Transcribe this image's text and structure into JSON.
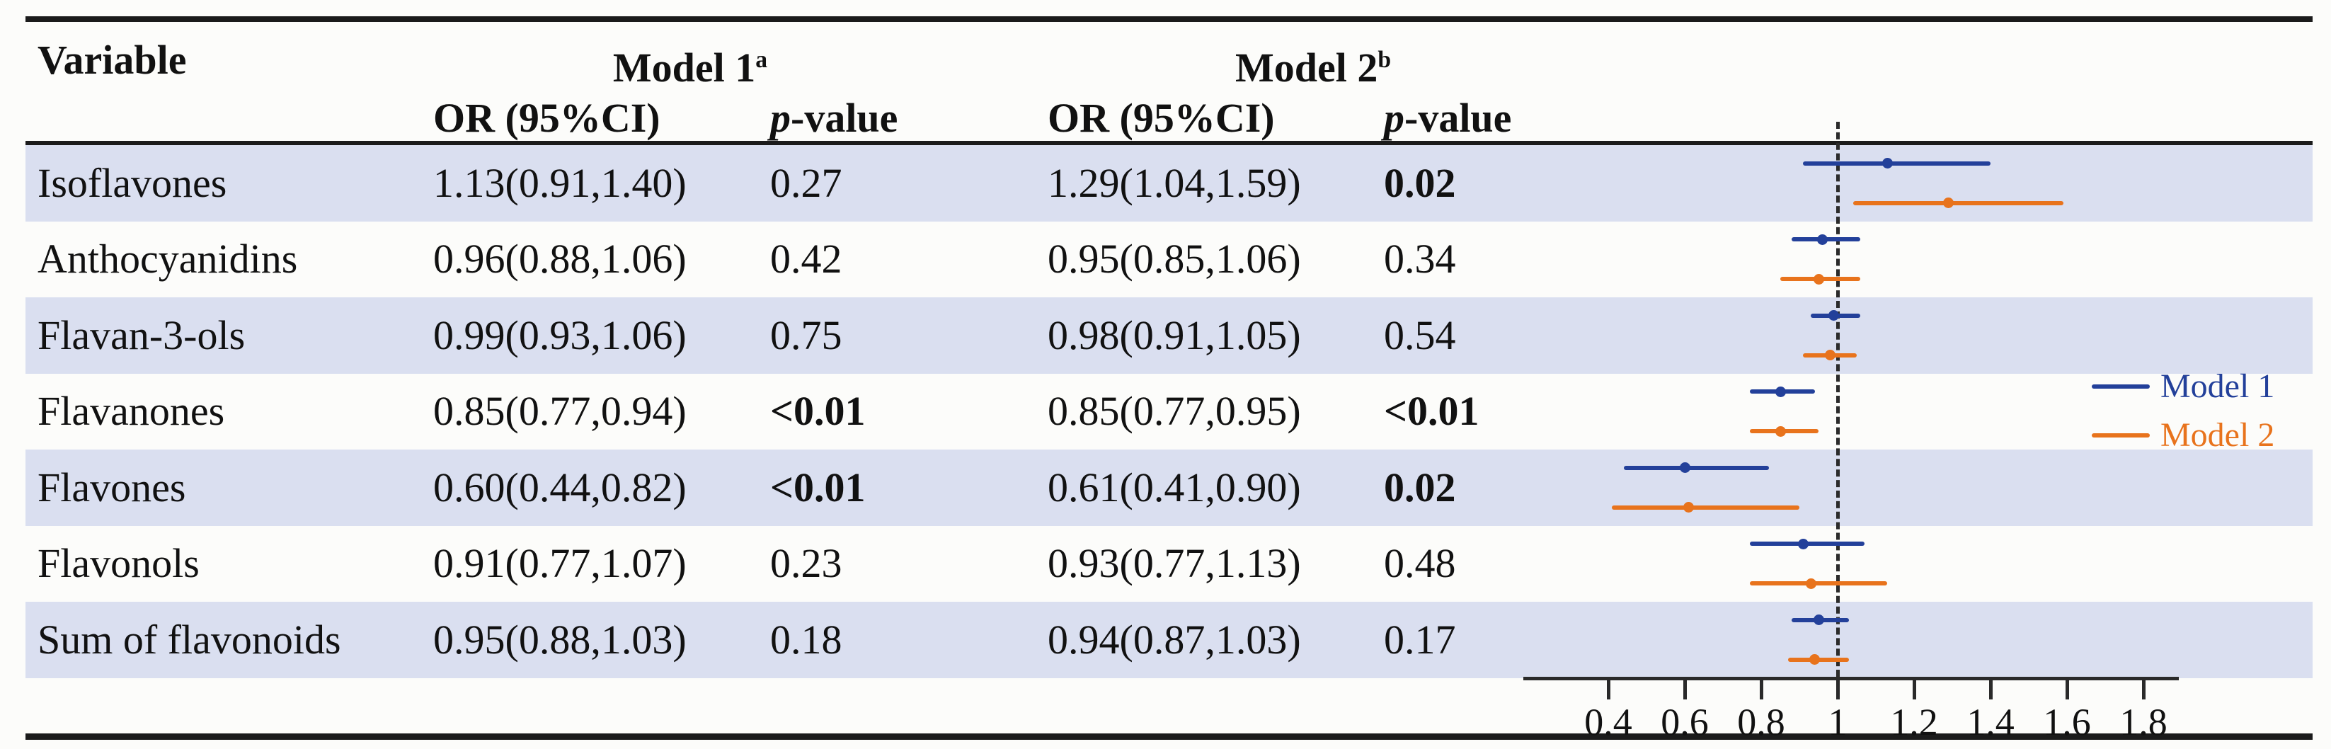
{
  "table": {
    "variable_header": "Variable",
    "model1": {
      "title": "Model 1",
      "superscript": "a",
      "or_header": "OR (95%CI)",
      "p_header_italic": "p",
      "p_header_rest": "-value"
    },
    "model2": {
      "title": "Model 2",
      "superscript": "b",
      "or_header": "OR (95%CI)",
      "p_header_italic": "p",
      "p_header_rest": "-value"
    },
    "rows": [
      {
        "label": "Isoflavones",
        "shaded": true,
        "m1_or": "1.13(0.91,1.40)",
        "m1_p": "0.27",
        "m1_p_bold": false,
        "m2_or": "1.29(1.04,1.59)",
        "m2_p": "0.02",
        "m2_p_bold": true
      },
      {
        "label": "Anthocyanidins",
        "shaded": false,
        "m1_or": "0.96(0.88,1.06)",
        "m1_p": "0.42",
        "m1_p_bold": false,
        "m2_or": "0.95(0.85,1.06)",
        "m2_p": "0.34",
        "m2_p_bold": false
      },
      {
        "label": "Flavan-3-ols",
        "shaded": true,
        "m1_or": "0.99(0.93,1.06)",
        "m1_p": "0.75",
        "m1_p_bold": false,
        "m2_or": "0.98(0.91,1.05)",
        "m2_p": "0.54",
        "m2_p_bold": false
      },
      {
        "label": "Flavanones",
        "shaded": false,
        "m1_or": "0.85(0.77,0.94)",
        "m1_p": "<0.01",
        "m1_p_bold": true,
        "m2_or": "0.85(0.77,0.95)",
        "m2_p": "<0.01",
        "m2_p_bold": true
      },
      {
        "label": "Flavones",
        "shaded": true,
        "m1_or": "0.60(0.44,0.82)",
        "m1_p": "<0.01",
        "m1_p_bold": true,
        "m2_or": "0.61(0.41,0.90)",
        "m2_p": "0.02",
        "m2_p_bold": true
      },
      {
        "label": "Flavonols",
        "shaded": false,
        "m1_or": "0.91(0.77,1.07)",
        "m1_p": "0.23",
        "m1_p_bold": false,
        "m2_or": "0.93(0.77,1.13)",
        "m2_p": "0.48",
        "m2_p_bold": false
      },
      {
        "label": "Sum of flavonoids",
        "shaded": true,
        "m1_or": "0.95(0.88,1.03)",
        "m1_p": "0.18",
        "m1_p_bold": false,
        "m2_or": "0.94(0.87,1.03)",
        "m2_p": "0.17",
        "m2_p_bold": false
      }
    ]
  },
  "legend": {
    "items": [
      {
        "label": "Model 1",
        "color": "#23409a"
      },
      {
        "label": "Model 2",
        "color": "#e8731c"
      }
    ],
    "position": "right, beside Flavanones row"
  },
  "colors": {
    "model1_blue": "#23409a",
    "model2_orange": "#e8731c",
    "row_band_lavender": "#dadff0",
    "rule_dark": "#1b1b1b",
    "reference_dash": "#2b2b2b"
  },
  "chart_data": {
    "type": "forest (scatter points with horizontal 95% CI lines)",
    "categories": [
      "Isoflavones",
      "Anthocyanidins",
      "Flavan-3-ols",
      "Flavanones",
      "Flavones",
      "Flavonols",
      "Sum of flavonoids"
    ],
    "series": [
      {
        "name": "Model 1",
        "color": "#23409a",
        "or": [
          1.13,
          0.96,
          0.99,
          0.85,
          0.6,
          0.91,
          0.95
        ],
        "ci_low": [
          0.91,
          0.88,
          0.93,
          0.77,
          0.44,
          0.77,
          0.88
        ],
        "ci_high": [
          1.4,
          1.06,
          1.06,
          0.94,
          0.82,
          1.07,
          1.03
        ]
      },
      {
        "name": "Model 2",
        "color": "#e8731c",
        "or": [
          1.29,
          0.95,
          0.98,
          0.85,
          0.61,
          0.93,
          0.94
        ],
        "ci_low": [
          1.04,
          0.85,
          0.91,
          0.77,
          0.41,
          0.77,
          0.87
        ],
        "ci_high": [
          1.59,
          1.06,
          1.05,
          0.95,
          0.9,
          1.13,
          1.03
        ]
      }
    ],
    "x_axis": {
      "tick_labels": [
        "0.4",
        "0.6",
        "0.8",
        "1",
        "1.2",
        "1.4",
        "1.6",
        "1.8"
      ],
      "tick_values": [
        0.4,
        0.6,
        0.8,
        1,
        1.2,
        1.4,
        1.6,
        1.8
      ],
      "range": [
        0.18,
        1.89
      ],
      "reference_line": 1,
      "grid": false
    },
    "legend_position": "right"
  }
}
